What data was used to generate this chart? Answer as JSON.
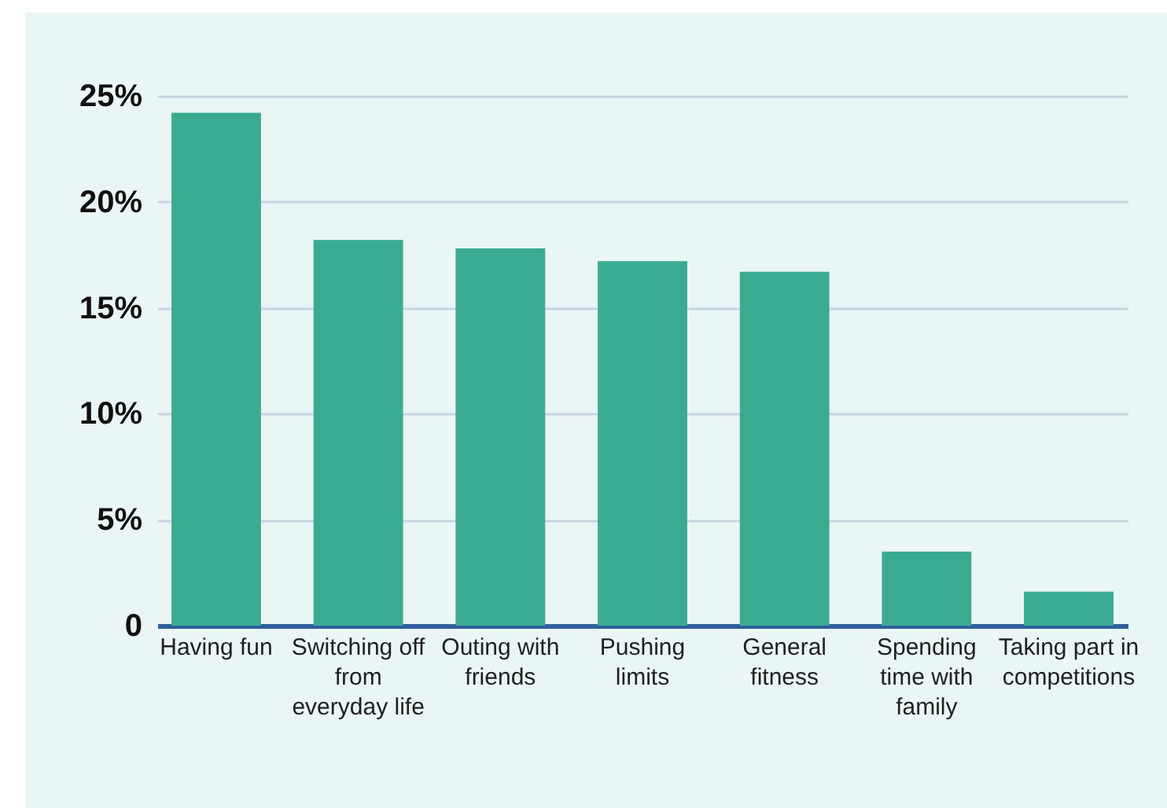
{
  "chart_data": {
    "type": "bar",
    "categories": [
      "Having fun",
      "Switching off from everyday life",
      "Outing with friends",
      "Pushing limits",
      "General fitness",
      "Spending time with family",
      "Taking part in competitions"
    ],
    "values": [
      24.2,
      18.2,
      17.8,
      17.2,
      16.7,
      3.5,
      1.6
    ],
    "color": "#3aaa91",
    "ylim": [
      0,
      25
    ],
    "yticks": [
      0,
      {
        "value": 5,
        "label": "5%"
      },
      {
        "value": 10,
        "label": "10%"
      },
      {
        "value": 15,
        "label": "15%"
      },
      {
        "value": 20,
        "label": "20%"
      },
      {
        "value": 25,
        "label": "25%"
      }
    ],
    "grid": "y"
  }
}
